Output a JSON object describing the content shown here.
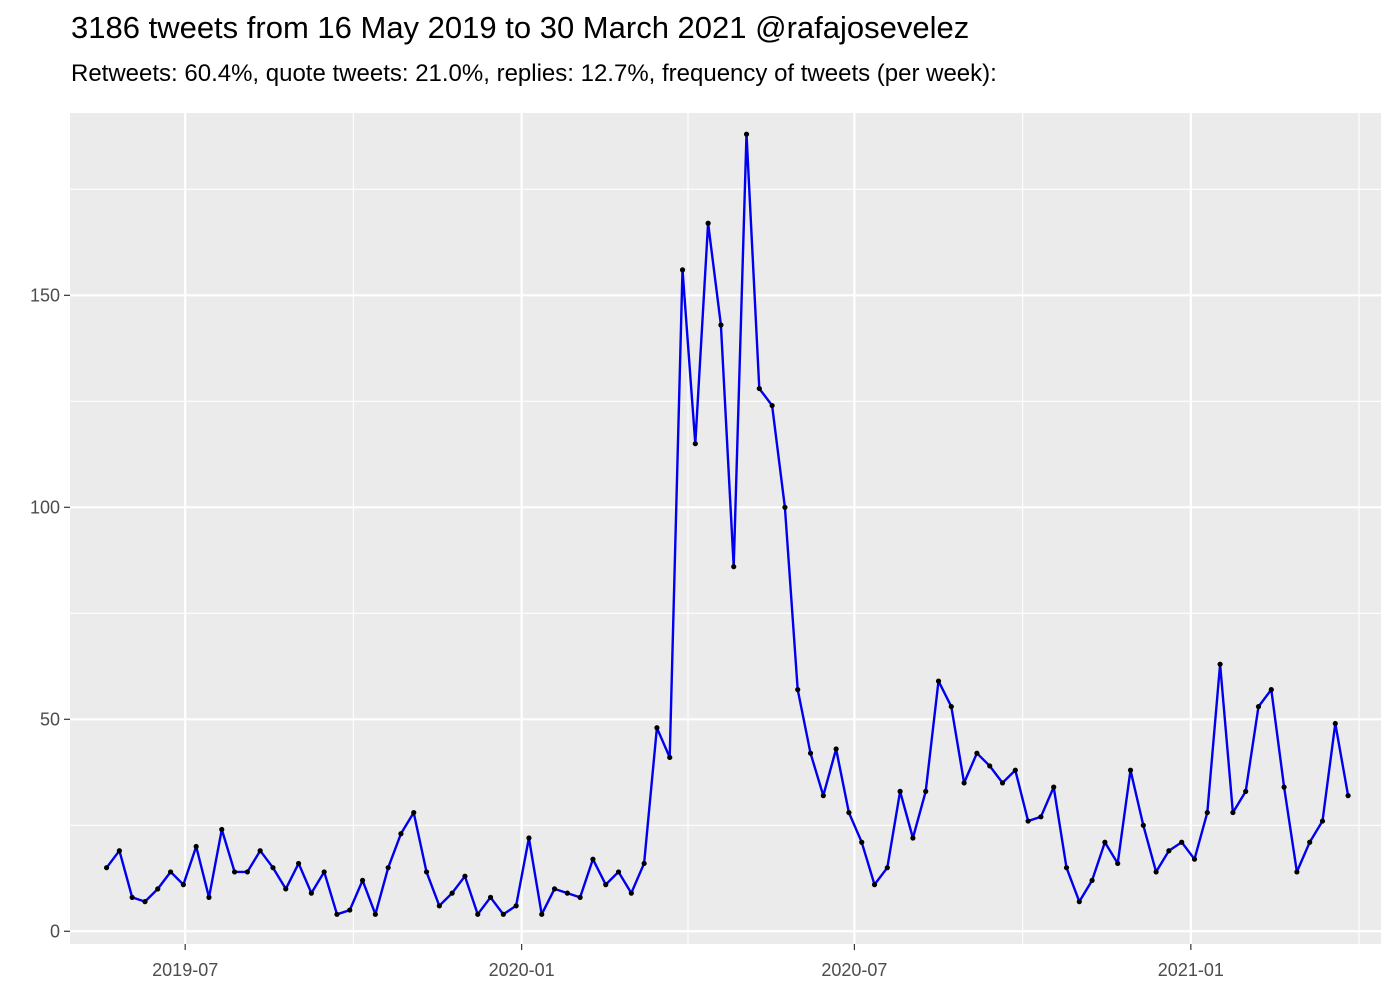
{
  "chart_data": {
    "type": "line",
    "title": "3186 tweets from 16 May 2019 to 30 March 2021 @rafajosevelez",
    "subtitle": "Retweets: 60.4%, quote tweets: 21.0%, replies: 12.7%, frequency of tweets (per week):",
    "xlabel": "",
    "ylabel": "",
    "x_ticks": [
      "2019-07",
      "2020-01",
      "2020-07",
      "2021-01"
    ],
    "y_ticks": [
      "0",
      "50",
      "100",
      "150"
    ],
    "xlim": [
      "2019-04-29",
      "2021-04-15"
    ],
    "ylim": [
      -3,
      193
    ],
    "grid": true,
    "legend": "none",
    "colors": {
      "line": "#0000ee",
      "point": "#000000",
      "panel": "#ebebeb",
      "grid": "#ffffff"
    },
    "series": [
      {
        "x": [
          "2019-05-19",
          "2019-05-26",
          "2019-06-02",
          "2019-06-09",
          "2019-06-16",
          "2019-06-23",
          "2019-06-30",
          "2019-07-07",
          "2019-07-14",
          "2019-07-21",
          "2019-07-28",
          "2019-08-04",
          "2019-08-11",
          "2019-08-18",
          "2019-08-25",
          "2019-09-01",
          "2019-09-08",
          "2019-09-15",
          "2019-09-22",
          "2019-09-29",
          "2019-10-06",
          "2019-10-13",
          "2019-10-20",
          "2019-10-27",
          "2019-11-03",
          "2019-11-10",
          "2019-11-17",
          "2019-11-24",
          "2019-12-01",
          "2019-12-08",
          "2019-12-15",
          "2019-12-22",
          "2019-12-29",
          "2020-01-05",
          "2020-01-12",
          "2020-01-19",
          "2020-01-26",
          "2020-02-02",
          "2020-02-09",
          "2020-02-16",
          "2020-02-23",
          "2020-03-01",
          "2020-03-08",
          "2020-03-15",
          "2020-03-22",
          "2020-03-29",
          "2020-04-05",
          "2020-04-12",
          "2020-04-19",
          "2020-04-26",
          "2020-05-03",
          "2020-05-10",
          "2020-05-17",
          "2020-05-24",
          "2020-05-31",
          "2020-06-07",
          "2020-06-14",
          "2020-06-21",
          "2020-06-28",
          "2020-07-05",
          "2020-07-12",
          "2020-07-19",
          "2020-07-26",
          "2020-08-02",
          "2020-08-09",
          "2020-08-16",
          "2020-08-23",
          "2020-08-30",
          "2020-09-06",
          "2020-09-13",
          "2020-09-20",
          "2020-09-27",
          "2020-10-04",
          "2020-10-11",
          "2020-10-18",
          "2020-10-25",
          "2020-11-01",
          "2020-11-08",
          "2020-11-15",
          "2020-11-22",
          "2020-11-29",
          "2020-12-06",
          "2020-12-13",
          "2020-12-20",
          "2020-12-27",
          "2021-01-03",
          "2021-01-10",
          "2021-01-17",
          "2021-01-24",
          "2021-01-31",
          "2021-02-07",
          "2021-02-14",
          "2021-02-21",
          "2021-02-28",
          "2021-03-07",
          "2021-03-14",
          "2021-03-21",
          "2021-03-28"
        ],
        "values": [
          15,
          19,
          8,
          7,
          10,
          14,
          11,
          20,
          8,
          24,
          14,
          14,
          19,
          15,
          10,
          16,
          9,
          14,
          4,
          5,
          12,
          4,
          15,
          23,
          28,
          14,
          6,
          9,
          13,
          4,
          8,
          4,
          6,
          22,
          4,
          10,
          9,
          8,
          17,
          11,
          14,
          9,
          16,
          48,
          41,
          156,
          115,
          167,
          143,
          86,
          188,
          128,
          124,
          100,
          57,
          42,
          32,
          43,
          28,
          21,
          11,
          15,
          33,
          22,
          33,
          59,
          53,
          35,
          42,
          39,
          35,
          38,
          26,
          27,
          34,
          15,
          7,
          12,
          21,
          16,
          38,
          25,
          14,
          19,
          21,
          17,
          28,
          63,
          28,
          33,
          53,
          57,
          34,
          14,
          21,
          26,
          49,
          32
        ]
      }
    ]
  }
}
